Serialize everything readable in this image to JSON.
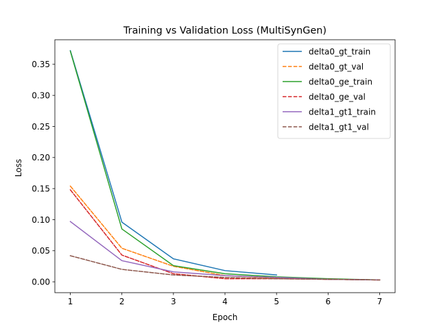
{
  "chart_data": {
    "type": "line",
    "title": "Training vs Validation Loss (MultiSynGen)",
    "xlabel": "Epoch",
    "ylabel": "Loss",
    "xlim": [
      0.7,
      7.3
    ],
    "ylim": [
      -0.0175,
      0.3895
    ],
    "xticks": [
      1,
      2,
      3,
      4,
      5,
      6,
      7
    ],
    "xtick_labels": [
      "1",
      "2",
      "3",
      "4",
      "5",
      "6",
      "7"
    ],
    "yticks": [
      0.0,
      0.05,
      0.1,
      0.15,
      0.2,
      0.25,
      0.3,
      0.35
    ],
    "ytick_labels": [
      "0.00",
      "0.05",
      "0.10",
      "0.15",
      "0.20",
      "0.25",
      "0.30",
      "0.35"
    ],
    "grid": false,
    "legend_position": "top-right",
    "series": [
      {
        "name": "delta0_gt_train",
        "color": "#1f77b4",
        "dash": "solid",
        "x": [
          1,
          2,
          3,
          4,
          5
        ],
        "y": [
          0.372,
          0.096,
          0.037,
          0.018,
          0.011
        ]
      },
      {
        "name": "delta0_gt_val",
        "color": "#ff7f0e",
        "dash": "dashed",
        "x": [
          1,
          2,
          3,
          4,
          5,
          6,
          7
        ],
        "y": [
          0.154,
          0.054,
          0.025,
          0.01,
          0.006,
          0.004,
          0.003
        ]
      },
      {
        "name": "delta0_ge_train",
        "color": "#2ca02c",
        "dash": "solid",
        "x": [
          1,
          2,
          3,
          4,
          5,
          6,
          7
        ],
        "y": [
          0.371,
          0.085,
          0.026,
          0.013,
          0.008,
          0.005,
          0.003
        ]
      },
      {
        "name": "delta0_ge_val",
        "color": "#d62728",
        "dash": "dashed",
        "x": [
          1,
          2,
          3,
          4,
          5,
          6,
          7
        ],
        "y": [
          0.148,
          0.043,
          0.013,
          0.005,
          0.005,
          0.004,
          0.003
        ]
      },
      {
        "name": "delta1_gt1_train",
        "color": "#9467bd",
        "dash": "solid",
        "x": [
          1,
          2,
          3,
          4,
          5,
          6,
          7
        ],
        "y": [
          0.097,
          0.034,
          0.016,
          0.01,
          0.007,
          0.004,
          0.003
        ]
      },
      {
        "name": "delta1_gt1_val",
        "color": "#8c564b",
        "dash": "dashed",
        "x": [
          1,
          2,
          3,
          4,
          5,
          6,
          7
        ],
        "y": [
          0.042,
          0.02,
          0.011,
          0.007,
          0.005,
          0.004,
          0.003
        ]
      }
    ]
  }
}
